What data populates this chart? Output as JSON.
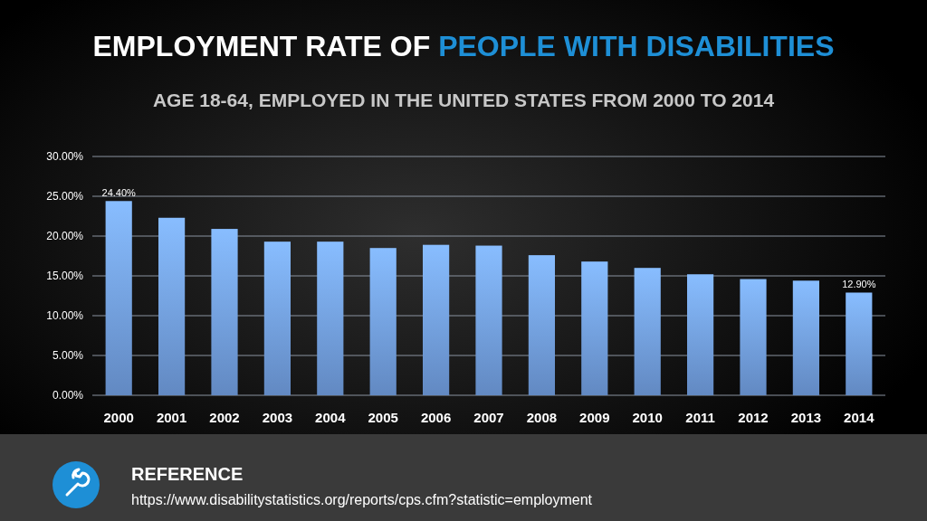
{
  "chart_data": {
    "type": "bar",
    "title": "EMPLOYMENT RATE OF PEOPLE WITH DISABILITIES",
    "subtitle": "AGE 18-64, EMPLOYED IN THE UNITED STATES FROM 2000 TO 2014",
    "categories": [
      "2000",
      "2001",
      "2002",
      "2003",
      "2004",
      "2005",
      "2006",
      "2007",
      "2008",
      "2009",
      "2010",
      "2011",
      "2012",
      "2013",
      "2014"
    ],
    "series": [
      {
        "color": "#7aaaf0",
        "values": [
          24.4,
          22.3,
          20.9,
          19.3,
          19.3,
          18.5,
          18.9,
          18.8,
          17.6,
          16.8,
          16.0,
          15.2,
          14.6,
          14.4,
          12.9
        ],
        "value_labels": [
          "24.40%",
          null,
          null,
          null,
          null,
          null,
          null,
          null,
          null,
          null,
          null,
          null,
          null,
          null,
          "12.90%"
        ]
      }
    ],
    "ylim": [
      0,
      30
    ],
    "yticks": [
      {
        "value": 0,
        "label": "0.00%"
      },
      {
        "value": 5,
        "label": "5.00%"
      },
      {
        "value": 10,
        "label": "10.00%"
      },
      {
        "value": 15,
        "label": "15.00%"
      },
      {
        "value": 20,
        "label": "20.00%"
      },
      {
        "value": 25,
        "label": "25.00%"
      },
      {
        "value": 30,
        "label": "30.00%"
      }
    ],
    "grid": "y",
    "annotations": [
      "REFERENCE",
      "https://www.disabilitystatistics.org/reports/cps.cfm?statistic=employment"
    ]
  }
}
